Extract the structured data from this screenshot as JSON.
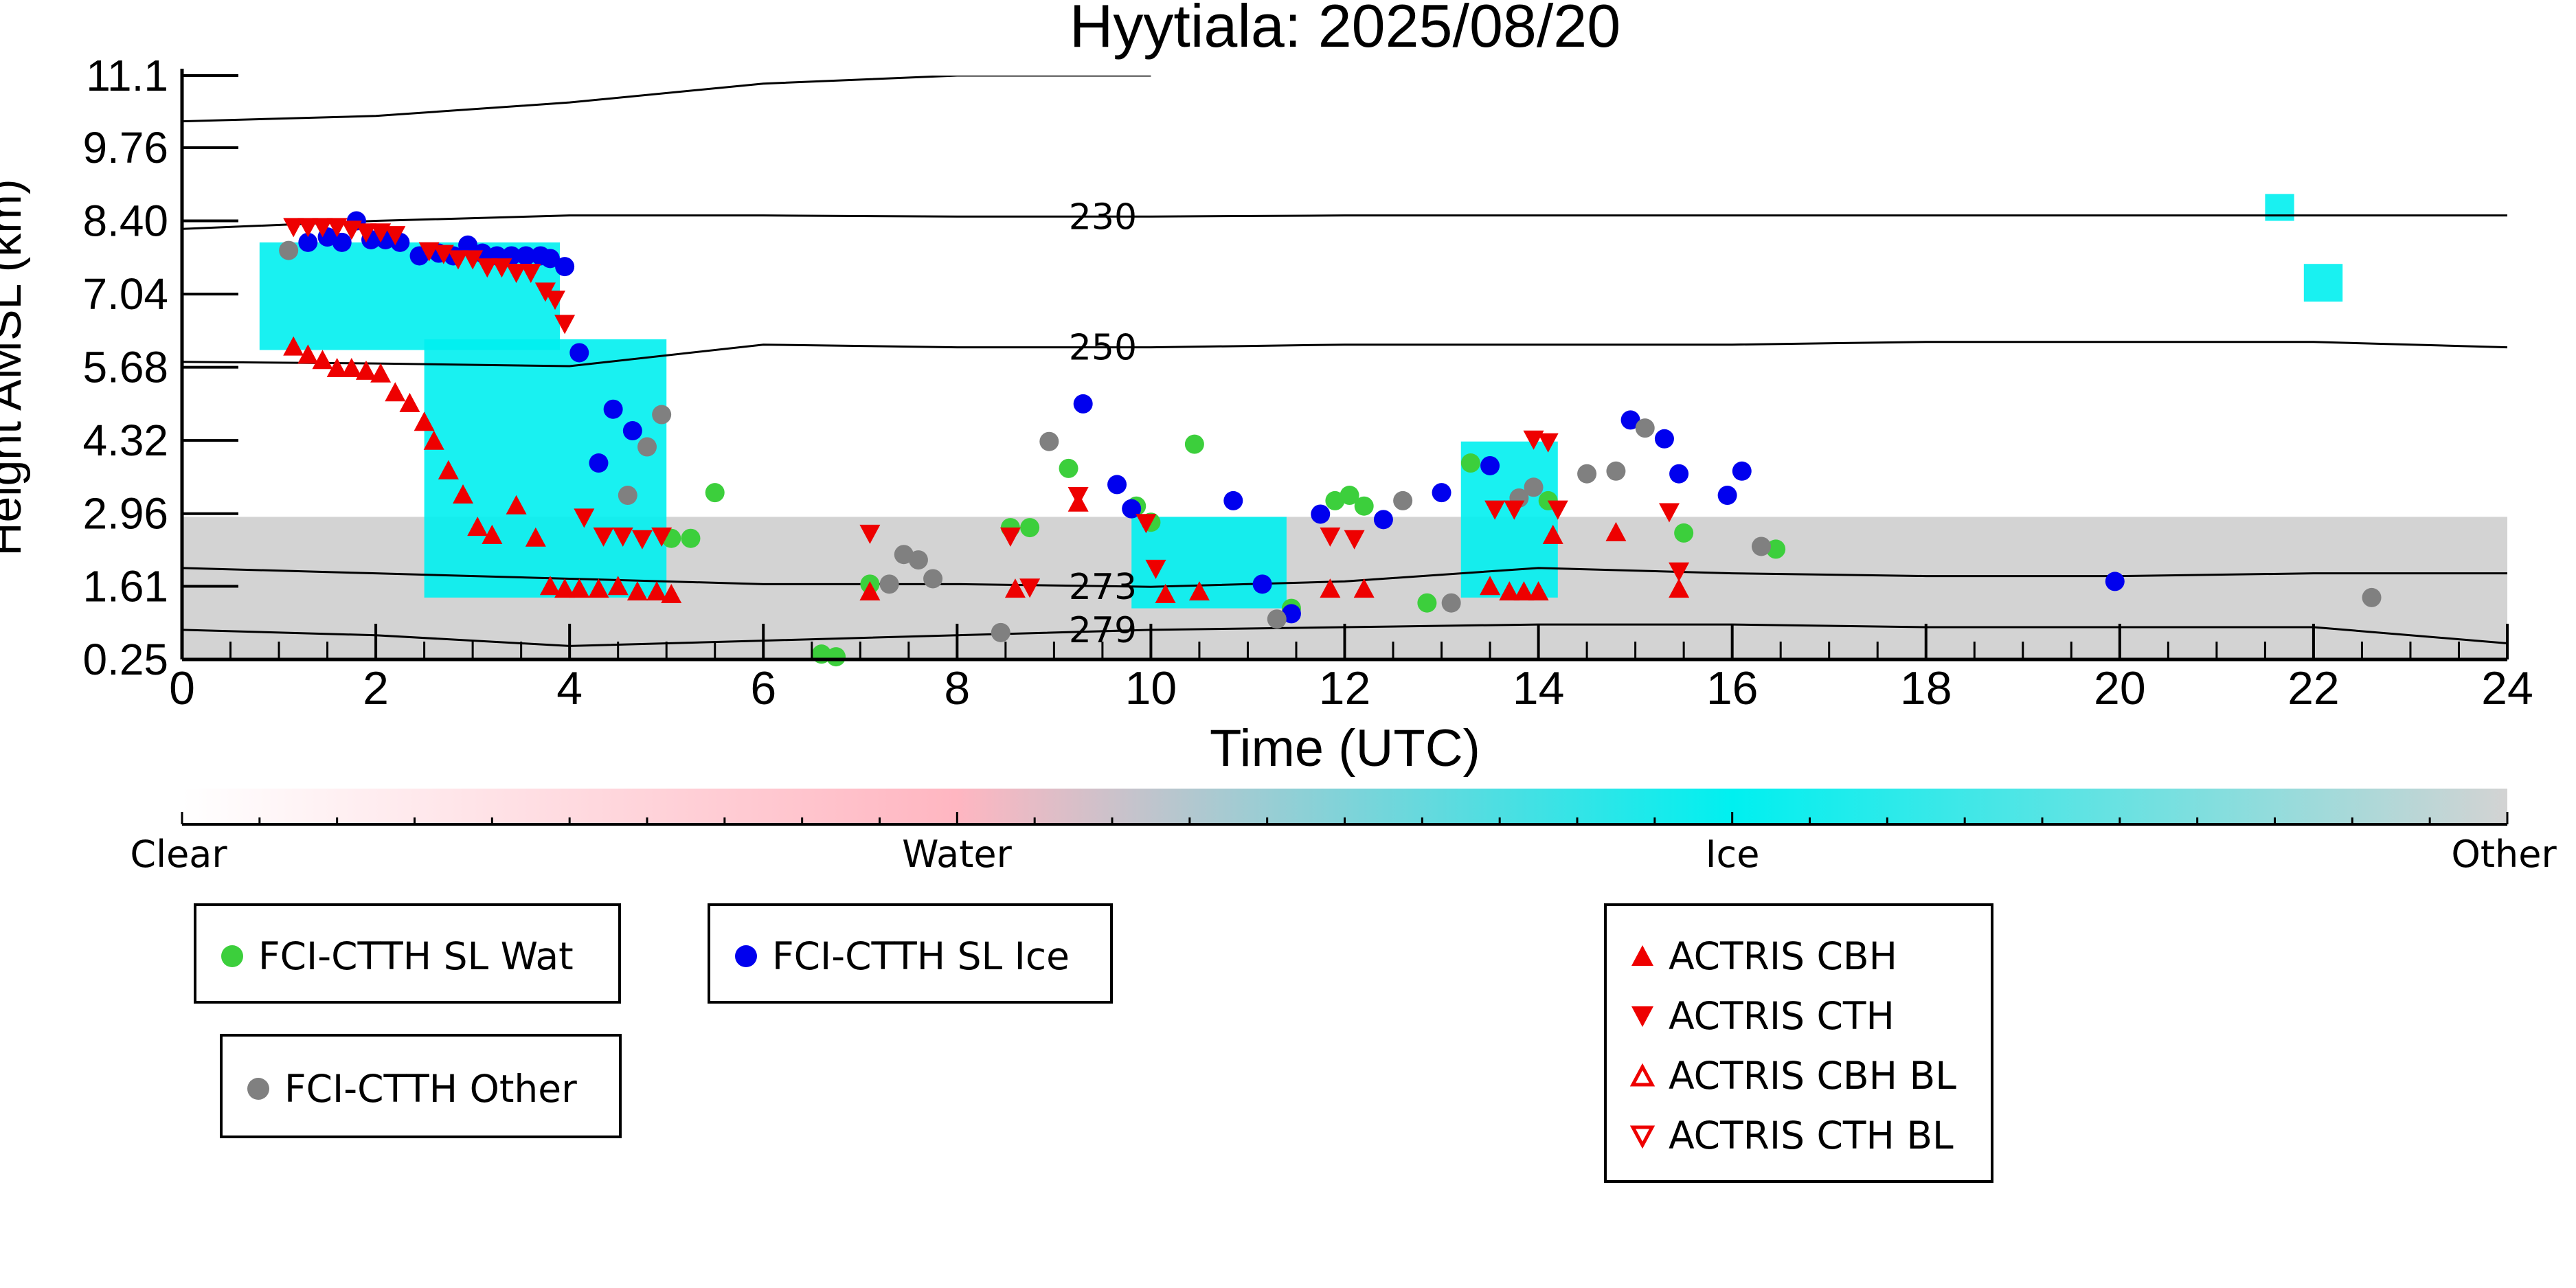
{
  "chart_data": {
    "type": "scatter",
    "title": "Hyytiala: 2025/08/20",
    "xlabel": "Time (UTC)",
    "ylabel": "Height AMSL (km)",
    "xlim": [
      0,
      24
    ],
    "ylim": [
      0.25,
      11.1
    ],
    "x_ticks": [
      "0",
      "2",
      "4",
      "6",
      "8",
      "10",
      "12",
      "14",
      "16",
      "18",
      "20",
      "22",
      "24"
    ],
    "y_ticks": [
      "0.25",
      "1.61",
      "2.96",
      "4.32",
      "5.68",
      "7.04",
      "8.40",
      "9.76",
      "11.1"
    ],
    "background_phase": {
      "low_other_layer_top_km": 2.9,
      "ice_cloud_segments": [
        {
          "x0": 0.8,
          "x1": 3.9,
          "top_km": 8.0,
          "base_km": 6.0
        },
        {
          "x0": 2.5,
          "x1": 5.0,
          "top_km": 6.2,
          "base_km": 1.4
        },
        {
          "x0": 9.8,
          "x1": 11.4,
          "top_km": 2.9,
          "base_km": 1.2
        },
        {
          "x0": 13.2,
          "x1": 14.2,
          "top_km": 4.3,
          "base_km": 1.4
        },
        {
          "x0": 21.5,
          "x1": 21.8,
          "top_km": 8.9,
          "base_km": 8.4
        },
        {
          "x0": 21.9,
          "x1": 22.3,
          "top_km": 7.6,
          "base_km": 6.9
        }
      ]
    },
    "isotherms": [
      {
        "label": "230",
        "x": [
          0,
          2,
          4,
          6,
          8,
          10,
          12,
          14,
          16,
          18,
          20,
          22,
          24
        ],
        "y": [
          8.25,
          8.4,
          8.5,
          8.5,
          8.48,
          8.48,
          8.5,
          8.5,
          8.5,
          8.5,
          8.5,
          8.5,
          8.5
        ]
      },
      {
        "label": "250",
        "x": [
          0,
          2,
          4,
          6,
          8,
          10,
          12,
          14,
          16,
          18,
          20,
          22,
          24
        ],
        "y": [
          5.78,
          5.75,
          5.7,
          6.1,
          6.05,
          6.05,
          6.1,
          6.1,
          6.1,
          6.15,
          6.15,
          6.15,
          6.05
        ]
      },
      {
        "label": "273",
        "x": [
          0,
          2,
          4,
          6,
          8,
          10,
          12,
          14,
          16,
          18,
          20,
          22,
          24
        ],
        "y": [
          1.95,
          1.85,
          1.75,
          1.65,
          1.65,
          1.6,
          1.7,
          1.95,
          1.85,
          1.8,
          1.8,
          1.85,
          1.85
        ]
      },
      {
        "label": "279",
        "x": [
          0,
          2,
          4,
          6,
          8,
          10,
          12,
          14,
          16,
          18,
          20,
          22,
          24
        ],
        "y": [
          0.8,
          0.7,
          0.5,
          0.6,
          0.7,
          0.8,
          0.85,
          0.9,
          0.9,
          0.85,
          0.85,
          0.85,
          0.55
        ]
      },
      {
        "label": "",
        "x": [
          0,
          2,
          4,
          6,
          8,
          10
        ],
        "y": [
          10.25,
          10.35,
          10.6,
          10.95,
          11.1,
          11.1
        ]
      }
    ],
    "series": [
      {
        "name": "FCI-CTTH SL Wat",
        "marker": "circle",
        "color": "#3ccf3c",
        "x": [
          5.05,
          5.25,
          5.5,
          6.6,
          6.75,
          7.1,
          8.55,
          8.75,
          9.15,
          9.85,
          10.0,
          10.45,
          11.45,
          11.9,
          12.05,
          12.2,
          12.85,
          13.3,
          14.1,
          15.5,
          16.45
        ],
        "y": [
          2.5,
          2.5,
          3.35,
          0.35,
          0.3,
          1.65,
          2.7,
          2.7,
          3.8,
          3.1,
          2.8,
          4.25,
          1.2,
          3.2,
          3.3,
          3.1,
          1.3,
          3.9,
          3.2,
          2.6,
          2.3
        ]
      },
      {
        "name": "FCI-CTTH SL Ice",
        "marker": "circle",
        "color": "#0000ee",
        "x": [
          1.3,
          1.5,
          1.65,
          1.8,
          1.95,
          2.1,
          2.25,
          2.45,
          2.65,
          2.8,
          2.95,
          3.1,
          3.25,
          3.4,
          3.55,
          3.7,
          3.8,
          3.95,
          4.1,
          4.3,
          4.45,
          4.65,
          9.3,
          9.65,
          9.8,
          10.85,
          11.15,
          11.45,
          11.75,
          12.4,
          13.0,
          13.5,
          14.95,
          15.3,
          15.45,
          15.95,
          16.1,
          19.95
        ],
        "y": [
          8.0,
          8.1,
          8.0,
          8.4,
          8.05,
          8.05,
          8.0,
          7.75,
          7.8,
          7.75,
          7.95,
          7.8,
          7.75,
          7.75,
          7.75,
          7.75,
          7.7,
          7.55,
          5.95,
          3.9,
          4.9,
          4.5,
          5.0,
          3.5,
          3.05,
          3.2,
          1.65,
          1.1,
          2.95,
          2.85,
          3.35,
          3.85,
          4.7,
          4.35,
          3.7,
          3.3,
          3.75,
          1.7
        ]
      },
      {
        "name": "FCI-CTTH Other",
        "marker": "circle",
        "color": "#808080",
        "x": [
          1.1,
          4.6,
          4.8,
          4.95,
          7.3,
          7.45,
          7.6,
          7.75,
          8.45,
          8.95,
          11.3,
          12.6,
          13.1,
          13.8,
          13.95,
          14.5,
          14.8,
          15.1,
          16.3,
          22.6
        ],
        "y": [
          7.85,
          3.3,
          4.2,
          4.8,
          1.65,
          2.2,
          2.1,
          1.75,
          0.75,
          4.3,
          1.0,
          3.2,
          1.3,
          3.25,
          3.45,
          3.7,
          3.75,
          4.55,
          2.35,
          1.4
        ]
      },
      {
        "name": "ACTRIS CBH",
        "marker": "triangle-up",
        "color": "#ee0000",
        "x": [
          1.15,
          1.3,
          1.45,
          1.6,
          1.75,
          1.9,
          2.05,
          2.2,
          2.35,
          2.5,
          2.6,
          2.75,
          2.9,
          3.05,
          3.2,
          3.45,
          3.65,
          3.8,
          3.95,
          4.1,
          4.3,
          4.5,
          4.7,
          4.9,
          5.05,
          7.1,
          8.6,
          9.25,
          10.15,
          10.5,
          11.85,
          12.2,
          13.5,
          13.7,
          13.85,
          14.0,
          14.15,
          14.8,
          15.45
        ],
        "y": [
          6.05,
          5.9,
          5.8,
          5.65,
          5.65,
          5.6,
          5.55,
          5.2,
          5.0,
          4.65,
          4.3,
          3.75,
          3.3,
          2.7,
          2.55,
          3.1,
          2.5,
          1.6,
          1.55,
          1.55,
          1.55,
          1.6,
          1.5,
          1.5,
          1.45,
          1.5,
          1.55,
          3.15,
          1.45,
          1.5,
          1.55,
          1.55,
          1.6,
          1.5,
          1.5,
          1.5,
          2.55,
          2.6,
          1.55
        ]
      },
      {
        "name": "ACTRIS CTH",
        "marker": "triangle-down",
        "color": "#ee0000",
        "x": [
          1.15,
          1.3,
          1.45,
          1.6,
          1.75,
          1.9,
          2.05,
          2.2,
          2.55,
          2.7,
          2.85,
          3.0,
          3.15,
          3.3,
          3.45,
          3.6,
          3.75,
          3.85,
          3.95,
          4.15,
          4.35,
          4.55,
          4.75,
          4.95,
          7.1,
          8.55,
          8.75,
          9.25,
          9.95,
          10.05,
          11.85,
          12.1,
          13.55,
          13.75,
          13.95,
          14.1,
          14.2,
          15.35,
          15.45
        ],
        "y": [
          8.3,
          8.3,
          8.3,
          8.3,
          8.25,
          8.2,
          8.2,
          8.15,
          7.85,
          7.8,
          7.7,
          7.7,
          7.55,
          7.55,
          7.45,
          7.45,
          7.1,
          6.95,
          6.5,
          2.9,
          2.55,
          2.55,
          2.5,
          2.55,
          2.6,
          2.55,
          1.6,
          3.3,
          2.8,
          1.95,
          2.55,
          2.5,
          3.05,
          3.05,
          4.35,
          4.3,
          3.05,
          3.0,
          1.9
        ]
      }
    ]
  },
  "colorbar": {
    "labels": [
      "Clear",
      "Water",
      "Ice",
      "Other"
    ],
    "stops": [
      "#ffffff",
      "#ffb6c1",
      "#00f0f0",
      "#d3d3d3"
    ]
  },
  "legend_groups": [
    {
      "entries": [
        "FCI-CTTH SL Wat"
      ]
    },
    {
      "entries": [
        "FCI-CTTH SL Ice"
      ]
    },
    {
      "entries": [
        "FCI-CTTH Other"
      ]
    },
    {
      "entries": [
        "ACTRIS CBH",
        "ACTRIS CTH",
        "ACTRIS CBH BL",
        "ACTRIS CTH BL"
      ]
    }
  ],
  "legend_markers": {
    "FCI-CTTH SL Wat": {
      "shape": "circle",
      "color": "#3ccf3c"
    },
    "FCI-CTTH SL Ice": {
      "shape": "circle",
      "color": "#0000ee"
    },
    "FCI-CTTH Other": {
      "shape": "circle",
      "color": "#808080"
    },
    "ACTRIS CBH": {
      "shape": "triangle-up",
      "color": "#ee0000"
    },
    "ACTRIS CTH": {
      "shape": "triangle-down",
      "color": "#ee0000"
    },
    "ACTRIS CBH BL": {
      "shape": "triangle-up-open",
      "color": "#ee0000"
    },
    "ACTRIS CTH BL": {
      "shape": "triangle-down-open",
      "color": "#ee0000"
    }
  }
}
